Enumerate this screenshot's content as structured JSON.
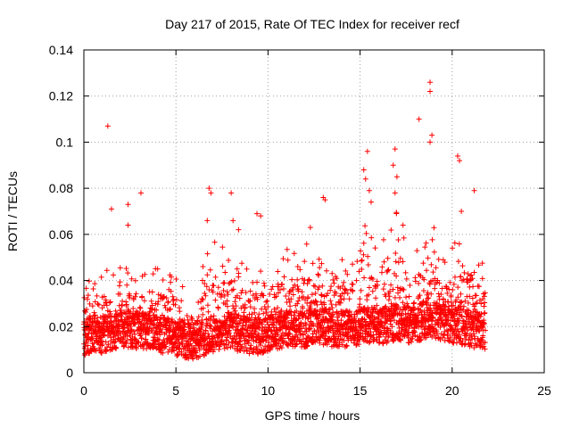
{
  "chart_data": {
    "type": "scatter",
    "title": "Day 217 of 2015, Rate Of TEC Index for receiver recf",
    "xlabel": "GPS time / hours",
    "ylabel": "ROTI / TECUs",
    "xlim": [
      0,
      25
    ],
    "ylim": [
      0,
      0.14
    ],
    "x_ticks": [
      0,
      5,
      10,
      15,
      20,
      25
    ],
    "y_ticks": [
      0,
      0.02,
      0.04,
      0.06,
      0.08,
      0.1,
      0.12,
      0.14
    ],
    "x_tick_labels": [
      "0",
      "5",
      "10",
      "15",
      "20",
      "25"
    ],
    "y_tick_labels": [
      "0",
      "0.02",
      "0.04",
      "0.06",
      "0.08",
      "0.1",
      "0.12",
      "0.14"
    ],
    "grid": true,
    "marker": "+",
    "color": "#ff0000",
    "x_data_range": [
      0,
      21.8
    ],
    "envelope": {
      "x": [
        0,
        0.5,
        1,
        1.5,
        2,
        2.5,
        3,
        3.5,
        4,
        4.5,
        5,
        5.5,
        6,
        6.5,
        7,
        7.5,
        8,
        8.5,
        9,
        9.5,
        10,
        10.5,
        11,
        11.5,
        12,
        12.5,
        13,
        13.5,
        14,
        14.5,
        15,
        15.5,
        16,
        16.5,
        17,
        17.5,
        18,
        18.5,
        19,
        19.5,
        20,
        20.5,
        21,
        21.5,
        21.8
      ],
      "base": [
        0.015,
        0.017,
        0.016,
        0.017,
        0.018,
        0.019,
        0.018,
        0.018,
        0.017,
        0.016,
        0.015,
        0.014,
        0.014,
        0.015,
        0.017,
        0.018,
        0.018,
        0.017,
        0.016,
        0.016,
        0.017,
        0.018,
        0.019,
        0.019,
        0.019,
        0.02,
        0.02,
        0.019,
        0.019,
        0.019,
        0.02,
        0.021,
        0.02,
        0.021,
        0.022,
        0.021,
        0.021,
        0.023,
        0.023,
        0.022,
        0.021,
        0.02,
        0.019,
        0.018,
        0.018
      ],
      "peak": [
        0.045,
        0.046,
        0.045,
        0.045,
        0.046,
        0.046,
        0.045,
        0.047,
        0.046,
        0.045,
        0.044,
        0.035,
        0.03,
        0.048,
        0.06,
        0.055,
        0.05,
        0.05,
        0.045,
        0.048,
        0.045,
        0.05,
        0.055,
        0.055,
        0.057,
        0.06,
        0.058,
        0.056,
        0.05,
        0.05,
        0.07,
        0.06,
        0.065,
        0.075,
        0.078,
        0.06,
        0.055,
        0.06,
        0.065,
        0.05,
        0.055,
        0.06,
        0.06,
        0.05,
        0.048
      ]
    },
    "outliers": [
      {
        "x": 1.3,
        "y": 0.107
      },
      {
        "x": 1.5,
        "y": 0.071
      },
      {
        "x": 2.4,
        "y": 0.073
      },
      {
        "x": 2.4,
        "y": 0.064
      },
      {
        "x": 3.1,
        "y": 0.078
      },
      {
        "x": 6.8,
        "y": 0.08
      },
      {
        "x": 6.9,
        "y": 0.078
      },
      {
        "x": 6.7,
        "y": 0.066
      },
      {
        "x": 8.0,
        "y": 0.078
      },
      {
        "x": 8.1,
        "y": 0.066
      },
      {
        "x": 8.4,
        "y": 0.062
      },
      {
        "x": 9.4,
        "y": 0.069
      },
      {
        "x": 9.6,
        "y": 0.068
      },
      {
        "x": 12.3,
        "y": 0.063
      },
      {
        "x": 13.0,
        "y": 0.076
      },
      {
        "x": 13.1,
        "y": 0.075
      },
      {
        "x": 15.2,
        "y": 0.088
      },
      {
        "x": 15.4,
        "y": 0.096
      },
      {
        "x": 15.3,
        "y": 0.084
      },
      {
        "x": 15.5,
        "y": 0.079
      },
      {
        "x": 15.6,
        "y": 0.074
      },
      {
        "x": 16.9,
        "y": 0.097
      },
      {
        "x": 16.8,
        "y": 0.09
      },
      {
        "x": 17.0,
        "y": 0.085
      },
      {
        "x": 16.9,
        "y": 0.078
      },
      {
        "x": 18.2,
        "y": 0.11
      },
      {
        "x": 18.8,
        "y": 0.126
      },
      {
        "x": 18.8,
        "y": 0.122
      },
      {
        "x": 18.9,
        "y": 0.103
      },
      {
        "x": 18.8,
        "y": 0.1
      },
      {
        "x": 20.3,
        "y": 0.094
      },
      {
        "x": 20.4,
        "y": 0.092
      },
      {
        "x": 20.5,
        "y": 0.07
      },
      {
        "x": 21.2,
        "y": 0.079
      }
    ]
  }
}
